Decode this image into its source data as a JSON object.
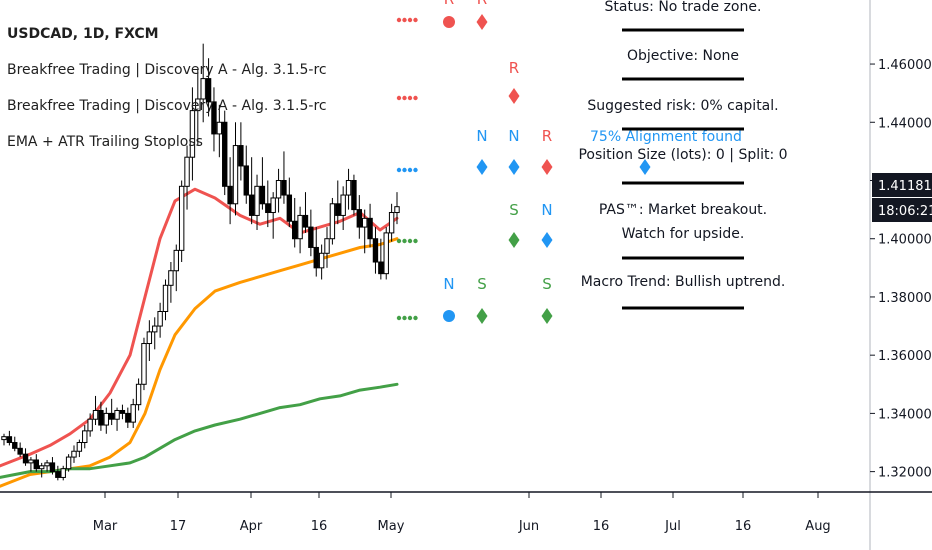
{
  "header": {
    "symbol_line": "USDCAD, 1D, FXCM",
    "indicators": [
      "Breakfree Trading | Discovery A - Alg. 3.1.5-rc",
      "Breakfree Trading | Discovery A - Alg. 3.1.5-rc",
      "EMA + ATR Trailing Stoploss"
    ]
  },
  "info_panel": {
    "status": "Status: No trade zone.",
    "objective": "Objective: None",
    "risk": "Suggested risk: 0% capital.",
    "position": "Position Size (lots): 0 | Split: 0",
    "pas_line1": "PAS™: Market breakout.",
    "pas_line2": "Watch for upside.",
    "macro": "Macro Trend: Bullish uptrend."
  },
  "alignment_text": "75% Alignment found",
  "price_tags": {
    "last_price": "1.41181",
    "countdown": "18:06:21"
  },
  "signal_labels": {
    "row1": [
      "R",
      "R"
    ],
    "row2": [
      "R"
    ],
    "row3": [
      "N",
      "N",
      "R"
    ],
    "row4": [
      "S",
      "N"
    ],
    "row5": [
      "N",
      "S",
      "S"
    ]
  },
  "colors": {
    "bull": "#26a69a",
    "red": "#ef5350",
    "blue": "#2196f3",
    "green": "#43a047",
    "ema_fast": "#ef5350",
    "ema_mid": "#ff9800",
    "ema_slow": "#43a047",
    "axis": "#131722"
  },
  "chart_data": {
    "type": "line",
    "y_axis_ticks": [
      "1.46000",
      "1.44000",
      "1.42000",
      "1.40000",
      "1.38000",
      "1.36000",
      "1.34000",
      "1.32000"
    ],
    "ylim": [
      1.313,
      1.482
    ],
    "x_ticks": [
      "Mar",
      "17",
      "Apr",
      "16",
      "May",
      "Jun",
      "16",
      "Jul",
      "16",
      "Aug"
    ],
    "candles": [
      [
        1.331,
        1.333,
        1.329,
        1.332
      ],
      [
        1.332,
        1.334,
        1.329,
        1.33
      ],
      [
        1.33,
        1.332,
        1.327,
        1.328
      ],
      [
        1.328,
        1.33,
        1.325,
        1.326
      ],
      [
        1.326,
        1.328,
        1.322,
        1.323
      ],
      [
        1.323,
        1.325,
        1.32,
        1.324
      ],
      [
        1.324,
        1.326,
        1.32,
        1.321
      ],
      [
        1.321,
        1.323,
        1.318,
        1.322
      ],
      [
        1.322,
        1.324,
        1.32,
        1.323
      ],
      [
        1.323,
        1.325,
        1.319,
        1.32
      ],
      [
        1.32,
        1.322,
        1.317,
        1.318
      ],
      [
        1.318,
        1.322,
        1.317,
        1.321
      ],
      [
        1.321,
        1.326,
        1.32,
        1.325
      ],
      [
        1.325,
        1.329,
        1.323,
        1.327
      ],
      [
        1.327,
        1.331,
        1.325,
        1.33
      ],
      [
        1.33,
        1.336,
        1.328,
        1.334
      ],
      [
        1.334,
        1.34,
        1.332,
        1.338
      ],
      [
        1.338,
        1.346,
        1.336,
        1.341
      ],
      [
        1.341,
        1.344,
        1.334,
        1.336
      ],
      [
        1.336,
        1.342,
        1.333,
        1.34
      ],
      [
        1.34,
        1.345,
        1.336,
        1.338
      ],
      [
        1.338,
        1.342,
        1.334,
        1.341
      ],
      [
        1.341,
        1.343,
        1.338,
        1.34
      ],
      [
        1.34,
        1.342,
        1.335,
        1.337
      ],
      [
        1.337,
        1.345,
        1.335,
        1.343
      ],
      [
        1.343,
        1.352,
        1.341,
        1.35
      ],
      [
        1.35,
        1.366,
        1.348,
        1.364
      ],
      [
        1.364,
        1.372,
        1.358,
        1.368
      ],
      [
        1.368,
        1.373,
        1.362,
        1.37
      ],
      [
        1.37,
        1.378,
        1.366,
        1.375
      ],
      [
        1.375,
        1.386,
        1.372,
        1.384
      ],
      [
        1.384,
        1.392,
        1.378,
        1.389
      ],
      [
        1.389,
        1.398,
        1.382,
        1.396
      ],
      [
        1.396,
        1.42,
        1.392,
        1.418
      ],
      [
        1.418,
        1.432,
        1.41,
        1.428
      ],
      [
        1.428,
        1.452,
        1.42,
        1.444
      ],
      [
        1.444,
        1.458,
        1.432,
        1.448
      ],
      [
        1.448,
        1.467,
        1.44,
        1.455
      ],
      [
        1.455,
        1.462,
        1.442,
        1.447
      ],
      [
        1.447,
        1.452,
        1.43,
        1.436
      ],
      [
        1.436,
        1.446,
        1.428,
        1.44
      ],
      [
        1.44,
        1.444,
        1.415,
        1.418
      ],
      [
        1.418,
        1.428,
        1.405,
        1.412
      ],
      [
        1.412,
        1.44,
        1.408,
        1.432
      ],
      [
        1.432,
        1.44,
        1.42,
        1.425
      ],
      [
        1.425,
        1.432,
        1.412,
        1.415
      ],
      [
        1.415,
        1.428,
        1.405,
        1.408
      ],
      [
        1.408,
        1.422,
        1.403,
        1.418
      ],
      [
        1.418,
        1.428,
        1.41,
        1.412
      ],
      [
        1.412,
        1.42,
        1.404,
        1.409
      ],
      [
        1.409,
        1.416,
        1.4,
        1.414
      ],
      [
        1.414,
        1.424,
        1.409,
        1.42
      ],
      [
        1.42,
        1.43,
        1.412,
        1.415
      ],
      [
        1.415,
        1.421,
        1.404,
        1.406
      ],
      [
        1.406,
        1.414,
        1.397,
        1.4
      ],
      [
        1.4,
        1.411,
        1.395,
        1.408
      ],
      [
        1.408,
        1.416,
        1.402,
        1.404
      ],
      [
        1.404,
        1.41,
        1.394,
        1.397
      ],
      [
        1.397,
        1.404,
        1.387,
        1.39
      ],
      [
        1.39,
        1.398,
        1.386,
        1.395
      ],
      [
        1.395,
        1.404,
        1.39,
        1.4
      ],
      [
        1.4,
        1.414,
        1.398,
        1.412
      ],
      [
        1.412,
        1.42,
        1.405,
        1.408
      ],
      [
        1.408,
        1.418,
        1.403,
        1.415
      ],
      [
        1.415,
        1.424,
        1.41,
        1.42
      ],
      [
        1.42,
        1.422,
        1.408,
        1.41
      ],
      [
        1.41,
        1.415,
        1.4,
        1.404
      ],
      [
        1.404,
        1.41,
        1.395,
        1.407
      ],
      [
        1.407,
        1.412,
        1.397,
        1.4
      ],
      [
        1.4,
        1.404,
        1.388,
        1.392
      ],
      [
        1.392,
        1.4,
        1.386,
        1.388
      ],
      [
        1.388,
        1.404,
        1.386,
        1.402
      ],
      [
        1.402,
        1.412,
        1.399,
        1.409
      ],
      [
        1.409,
        1.416,
        1.405,
        1.411
      ]
    ],
    "series": [
      {
        "values": [
          1.322,
          1.324,
          1.326,
          1.329,
          1.333,
          1.338,
          1.347,
          1.36,
          1.38,
          1.4,
          1.413,
          1.417,
          1.414,
          1.408,
          1.405,
          1.407,
          1.402,
          1.404,
          1.406,
          1.409,
          1.403,
          1.407
        ]
      },
      {
        "values": [
          1.315,
          1.317,
          1.319,
          1.32,
          1.321,
          1.322,
          1.325,
          1.33,
          1.34,
          1.355,
          1.367,
          1.376,
          1.382,
          1.385,
          1.387,
          1.389,
          1.391,
          1.393,
          1.395,
          1.397,
          1.398,
          1.4
        ]
      },
      {
        "values": [
          1.318,
          1.319,
          1.32,
          1.32,
          1.321,
          1.321,
          1.322,
          1.323,
          1.325,
          1.328,
          1.331,
          1.334,
          1.336,
          1.338,
          1.34,
          1.342,
          1.343,
          1.345,
          1.346,
          1.348,
          1.349,
          1.35
        ]
      }
    ]
  }
}
